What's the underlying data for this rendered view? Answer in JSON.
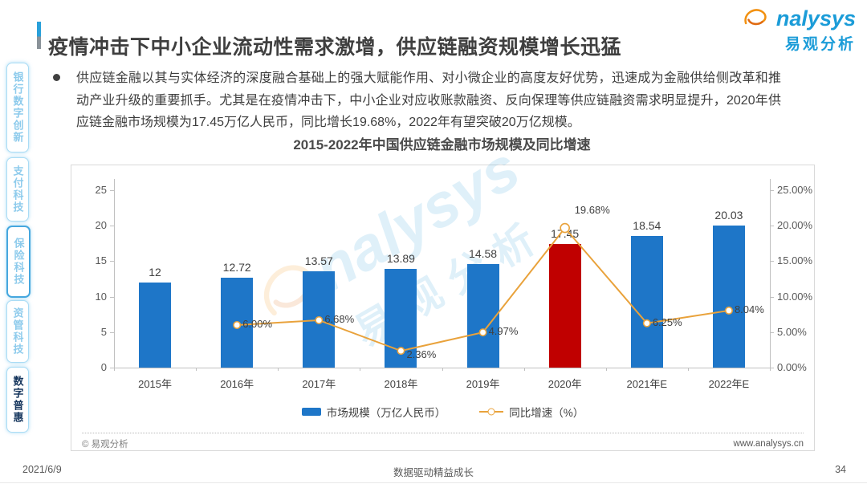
{
  "header": {
    "title": "疫情冲击下中小企业流动性需求激增，供应链融资规模增长迅猛"
  },
  "logo": {
    "brand": "nalysys",
    "brand_cn": "易观分析",
    "brand_color": "#1b9cd8",
    "swoosh_color": "#f29111"
  },
  "sidebar": {
    "items": [
      {
        "label": "银行数字创新",
        "active": false
      },
      {
        "label": "支付科技",
        "active": false
      },
      {
        "label": "保险科技",
        "active": false,
        "focused_border": true
      },
      {
        "label": "资管科技",
        "active": false
      },
      {
        "label": "数字普惠",
        "active": true
      }
    ]
  },
  "bullet": {
    "text": "供应链金融以其与实体经济的深度融合基础上的强大赋能作用、对小微企业的高度友好优势，迅速成为金融供给侧改革和推动产业升级的重要抓手。尤其是在疫情冲击下，中小企业对应收账款融资、反向保理等供应链融资需求明显提升，2020年供应链金融市场规模为17.45万亿人民币，同比增长19.68%，2022年有望突破20万亿规模。"
  },
  "chart_data": {
    "type": "bar+line",
    "title": "2015-2022年中国供应链金融市场规模及同比增速",
    "categories": [
      "2015年",
      "2016年",
      "2017年",
      "2018年",
      "2019年",
      "2020年",
      "2021年E",
      "2022年E"
    ],
    "series": [
      {
        "name": "市场规模（万亿人民币）",
        "type": "bar",
        "values": [
          12,
          12.72,
          13.57,
          13.89,
          14.58,
          17.45,
          18.54,
          20.03
        ],
        "labels": [
          "12",
          "12.72",
          "13.57",
          "13.89",
          "14.58",
          "17.45",
          "18.54",
          "20.03"
        ]
      },
      {
        "name": "同比增速（%）",
        "type": "line",
        "values": [
          null,
          6.0,
          6.68,
          2.36,
          4.97,
          19.68,
          6.25,
          8.04
        ],
        "labels": [
          null,
          "6.00%",
          "6.68%",
          "2.36%",
          "4.97%",
          "19.68%",
          "6.25%",
          "8.04%"
        ]
      }
    ],
    "highlight_index": 5,
    "bar_color": "#1e76c8",
    "highlight_color": "#c00000",
    "line_color": "#e9a23b",
    "left_axis": {
      "labels": [
        "0",
        "5",
        "10",
        "15",
        "20",
        "25"
      ],
      "min": 0,
      "max": 25
    },
    "right_axis": {
      "labels": [
        "0.00%",
        "5.00%",
        "10.00%",
        "15.00%",
        "20.00%",
        "25.00%"
      ],
      "min": 0,
      "max": 25
    },
    "grid": false,
    "legend_position": "bottom",
    "source_left": "© 易观分析",
    "source_right": "www.analysys.cn",
    "watermark_brand": "nalysys",
    "watermark_cn": "易观分析"
  },
  "footer": {
    "date": "2021/6/9",
    "slogan": "数据驱动精益成长",
    "page_number": "34"
  }
}
